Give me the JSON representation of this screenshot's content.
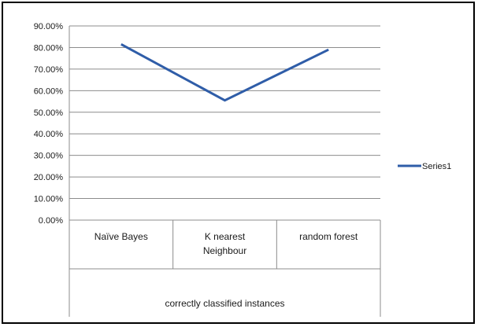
{
  "chart_data": {
    "type": "line",
    "categories": [
      "Naïve Bayes",
      "K nearest Neighbour",
      "random forest"
    ],
    "category_lines": [
      [
        "Naïve Bayes"
      ],
      [
        "K nearest",
        "Neighbour"
      ],
      [
        "random forest"
      ]
    ],
    "group_label": "correctly classified instances",
    "y_ticks": [
      "0.00%",
      "10.00%",
      "20.00%",
      "30.00%",
      "40.00%",
      "50.00%",
      "60.00%",
      "70.00%",
      "80.00%",
      "90.00%"
    ],
    "ylim": [
      0,
      90
    ],
    "series": [
      {
        "name": "Series1",
        "values": [
          81.5,
          55.5,
          79
        ]
      }
    ],
    "legend_position": "right",
    "grid": true,
    "title": "",
    "xlabel": "",
    "ylabel": ""
  },
  "colors": {
    "series": "#2f5da8",
    "grid": "#8c8c8c",
    "axis": "#8c8c8c",
    "frame": "#000000"
  }
}
